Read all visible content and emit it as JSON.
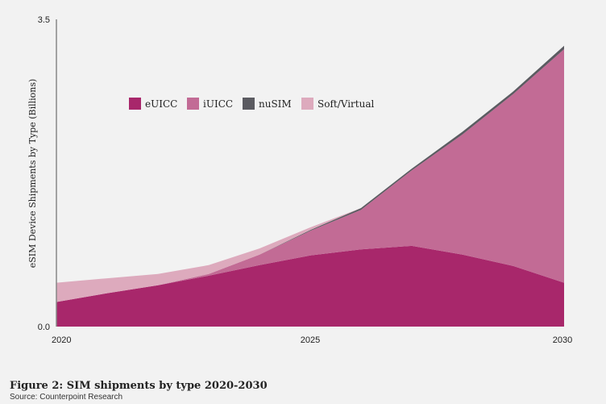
{
  "chart_data": {
    "type": "area",
    "stacked": true,
    "x": [
      2020,
      2021,
      2022,
      2023,
      2024,
      2025,
      2026,
      2027,
      2028,
      2029,
      2030
    ],
    "x_tick_labels": [
      "2020",
      "2025",
      "2030"
    ],
    "x_ticks": [
      2020,
      2025,
      2030
    ],
    "y_tick_labels": [
      "0.0",
      "3.5"
    ],
    "y_ticks": [
      0,
      3.5
    ],
    "ylim": [
      0,
      3.5
    ],
    "xlim": [
      2020,
      2030
    ],
    "ylabel": "eSIM Device Shipments by Type (Billions)",
    "grid": false,
    "legend_position": "top-left",
    "series": [
      {
        "name": "eUICC",
        "color": "#a8276b",
        "values": [
          0.28,
          0.38,
          0.47,
          0.58,
          0.7,
          0.81,
          0.88,
          0.92,
          0.82,
          0.69,
          0.5
        ]
      },
      {
        "name": "iUICC",
        "color": "#c26b95",
        "values": [
          0.0,
          0.0,
          0.0,
          0.02,
          0.12,
          0.28,
          0.45,
          0.86,
          1.37,
          1.96,
          2.66
        ]
      },
      {
        "name": "nuSIM",
        "color": "#5b5b61",
        "values": [
          0.0,
          0.0,
          0.0,
          0.0,
          0.0,
          0.01,
          0.02,
          0.02,
          0.03,
          0.03,
          0.04
        ]
      },
      {
        "name": "Soft/Virtual",
        "color": "#ddaabd",
        "values": [
          0.22,
          0.17,
          0.13,
          0.1,
          0.07,
          0.03,
          0.0,
          0.0,
          0.0,
          0.0,
          0.0
        ]
      }
    ]
  },
  "caption": {
    "title": "Figure 2: SIM shipments by type 2020-2030",
    "source": "Source: Counterpoint Research"
  }
}
